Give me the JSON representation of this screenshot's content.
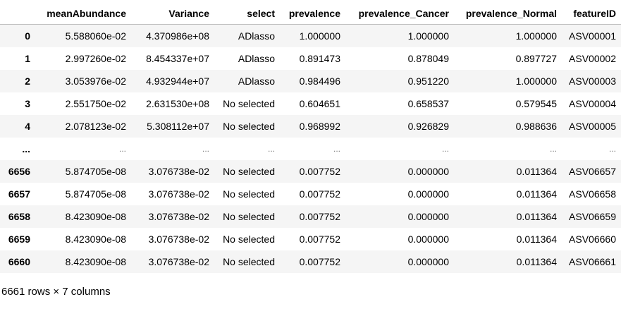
{
  "dataframe": {
    "columns": [
      "",
      "meanAbundance",
      "Variance",
      "select",
      "prevalence",
      "prevalence_Cancer",
      "prevalence_Normal",
      "featureID"
    ],
    "rows": [
      {
        "index": "0",
        "cells": [
          "5.588060e-02",
          "4.370986e+08",
          "ADlasso",
          "1.000000",
          "1.000000",
          "1.000000",
          "ASV00001"
        ]
      },
      {
        "index": "1",
        "cells": [
          "2.997260e-02",
          "8.454337e+07",
          "ADlasso",
          "0.891473",
          "0.878049",
          "0.897727",
          "ASV00002"
        ]
      },
      {
        "index": "2",
        "cells": [
          "3.053976e-02",
          "4.932944e+07",
          "ADlasso",
          "0.984496",
          "0.951220",
          "1.000000",
          "ASV00003"
        ]
      },
      {
        "index": "3",
        "cells": [
          "2.551750e-02",
          "2.631530e+08",
          "No selected",
          "0.604651",
          "0.658537",
          "0.579545",
          "ASV00004"
        ]
      },
      {
        "index": "4",
        "cells": [
          "2.078123e-02",
          "5.308112e+07",
          "No selected",
          "0.968992",
          "0.926829",
          "0.988636",
          "ASV00005"
        ]
      },
      {
        "index": "...",
        "cells": [
          "...",
          "...",
          "...",
          "...",
          "...",
          "...",
          "..."
        ]
      },
      {
        "index": "6656",
        "cells": [
          "5.874705e-08",
          "3.076738e-02",
          "No selected",
          "0.007752",
          "0.000000",
          "0.011364",
          "ASV06657"
        ]
      },
      {
        "index": "6657",
        "cells": [
          "5.874705e-08",
          "3.076738e-02",
          "No selected",
          "0.007752",
          "0.000000",
          "0.011364",
          "ASV06658"
        ]
      },
      {
        "index": "6658",
        "cells": [
          "8.423090e-08",
          "3.076738e-02",
          "No selected",
          "0.007752",
          "0.000000",
          "0.011364",
          "ASV06659"
        ]
      },
      {
        "index": "6659",
        "cells": [
          "8.423090e-08",
          "3.076738e-02",
          "No selected",
          "0.007752",
          "0.000000",
          "0.011364",
          "ASV06660"
        ]
      },
      {
        "index": "6660",
        "cells": [
          "8.423090e-08",
          "3.076738e-02",
          "No selected",
          "0.007752",
          "0.000000",
          "0.011364",
          "ASV06661"
        ]
      }
    ],
    "shape_text": "6661 rows × 7 columns"
  }
}
